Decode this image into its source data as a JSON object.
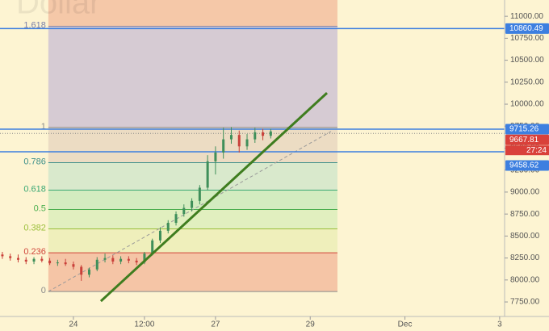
{
  "chart_data": {
    "type": "candlestick",
    "watermark": "Dollar",
    "xlim": [
      -37.2,
      218.5
    ],
    "ylim": [
      7585,
      11185
    ],
    "xticks": [
      {
        "value": 0,
        "label": "24"
      },
      {
        "value": 36,
        "label": "12:00"
      },
      {
        "value": 72,
        "label": "27"
      },
      {
        "value": 120,
        "label": "29"
      },
      {
        "value": 168,
        "label": "Dec"
      },
      {
        "value": 216,
        "label": "3"
      }
    ],
    "yticks": [
      {
        "value": 7750,
        "label": "7750.00"
      },
      {
        "value": 8000,
        "label": "8000.00"
      },
      {
        "value": 8250,
        "label": "8250.00"
      },
      {
        "value": 8500,
        "label": "8500.00"
      },
      {
        "value": 8750,
        "label": "8750.00"
      },
      {
        "value": 9000,
        "label": "9000.00"
      },
      {
        "value": 9250,
        "label": "9250.00"
      },
      {
        "value": 9500,
        "label": "9500.00"
      },
      {
        "value": 9750,
        "label": "9750.00"
      },
      {
        "value": 10000,
        "label": "10000.00"
      },
      {
        "value": 10250,
        "label": "10250.00"
      },
      {
        "value": 10500,
        "label": "10500.00"
      },
      {
        "value": 10750,
        "label": "10750.00"
      },
      {
        "value": 11000,
        "label": "11000.00"
      }
    ],
    "up_color": "#3f8f5a",
    "down_color": "#c9403a",
    "x": [
      -36,
      -32,
      -28,
      -24,
      -20,
      -16,
      -12,
      -8,
      -4,
      0,
      4,
      8,
      12,
      16,
      20,
      24,
      28,
      32,
      36,
      40,
      44,
      48,
      52,
      56,
      60,
      64,
      68,
      72,
      76,
      80,
      84,
      88,
      92,
      96,
      100
    ],
    "open": [
      8290,
      8270,
      8250,
      8230,
      8210,
      8240,
      8220,
      8190,
      8200,
      8180,
      8150,
      8060,
      8120,
      8230,
      8250,
      8210,
      8240,
      8220,
      8200,
      8300,
      8450,
      8560,
      8650,
      8750,
      8820,
      8900,
      9050,
      9350,
      9450,
      9600,
      9650,
      9520,
      9600,
      9680,
      9640
    ],
    "high": [
      8320,
      8300,
      8290,
      8260,
      8260,
      8270,
      8250,
      8230,
      8240,
      8210,
      8170,
      8140,
      8260,
      8300,
      8280,
      8270,
      8270,
      8250,
      8320,
      8470,
      8600,
      8680,
      8780,
      8860,
      8930,
      9080,
      9420,
      9520,
      9730,
      9740,
      9700,
      9660,
      9730,
      9720,
      9720
    ],
    "low": [
      8240,
      8220,
      8200,
      8180,
      8180,
      8200,
      8170,
      8160,
      8160,
      8120,
      7990,
      8030,
      8100,
      8200,
      8180,
      8180,
      8190,
      8170,
      8180,
      8280,
      8420,
      8530,
      8620,
      8720,
      8780,
      8860,
      9020,
      9200,
      9380,
      9550,
      9450,
      9480,
      9560,
      9590,
      9610
    ],
    "close": [
      8270,
      8250,
      8230,
      8210,
      8240,
      8220,
      8190,
      8200,
      8180,
      8150,
      8060,
      8120,
      8230,
      8250,
      8210,
      8240,
      8220,
      8200,
      8300,
      8450,
      8560,
      8650,
      8750,
      8820,
      8900,
      9050,
      9350,
      9450,
      9600,
      9650,
      9520,
      9600,
      9680,
      9640,
      9690
    ],
    "fib_x": [
      -12.7,
      133.8
    ],
    "fib_fill_above": "#f5c8a8",
    "fib_levels": [
      {
        "level": 1.618,
        "price": 10885,
        "color": "#7a7fa8",
        "fill": "#d6cbd3"
      },
      {
        "level": 1,
        "price": 9735,
        "color": "#8a8a8a",
        "fill": "#ecdcc3"
      },
      {
        "level": 0.786,
        "price": 9335,
        "color": "#3d8f8a",
        "fill": "#d9e9cc"
      },
      {
        "level": 0.618,
        "price": 9022,
        "color": "#3aa874",
        "fill": "#d3ecc0"
      },
      {
        "level": 0.5,
        "price": 8802,
        "color": "#4caf50",
        "fill": "#e1efbf"
      },
      {
        "level": 0.382,
        "price": 8581,
        "color": "#9bbf3a",
        "fill": "#efefbb"
      },
      {
        "level": 0.236,
        "price": 8309,
        "color": "#d0453a",
        "fill": "#f5c5a6"
      },
      {
        "level": 0,
        "price": 7869,
        "color": "#8a8a8a",
        "fill": null
      }
    ],
    "price_lines": [
      {
        "value": 10860.49,
        "color": "#3d7fe0"
      },
      {
        "value": 9715.26,
        "color": "#3d7fe0"
      },
      {
        "value": 9458.62,
        "color": "#3d7fe0"
      }
    ],
    "last_price": {
      "value": 9667.81,
      "color": "#d9403a",
      "countdown": "27:24"
    },
    "trend_line": {
      "x": [
        13.9,
        128.5
      ],
      "y": [
        7759,
        10128
      ],
      "color": "#3f7d1f"
    },
    "fib_trend": {
      "x": [
        -12.7,
        130.5
      ],
      "y": [
        7869,
        9690
      ],
      "color": "#999999"
    }
  }
}
